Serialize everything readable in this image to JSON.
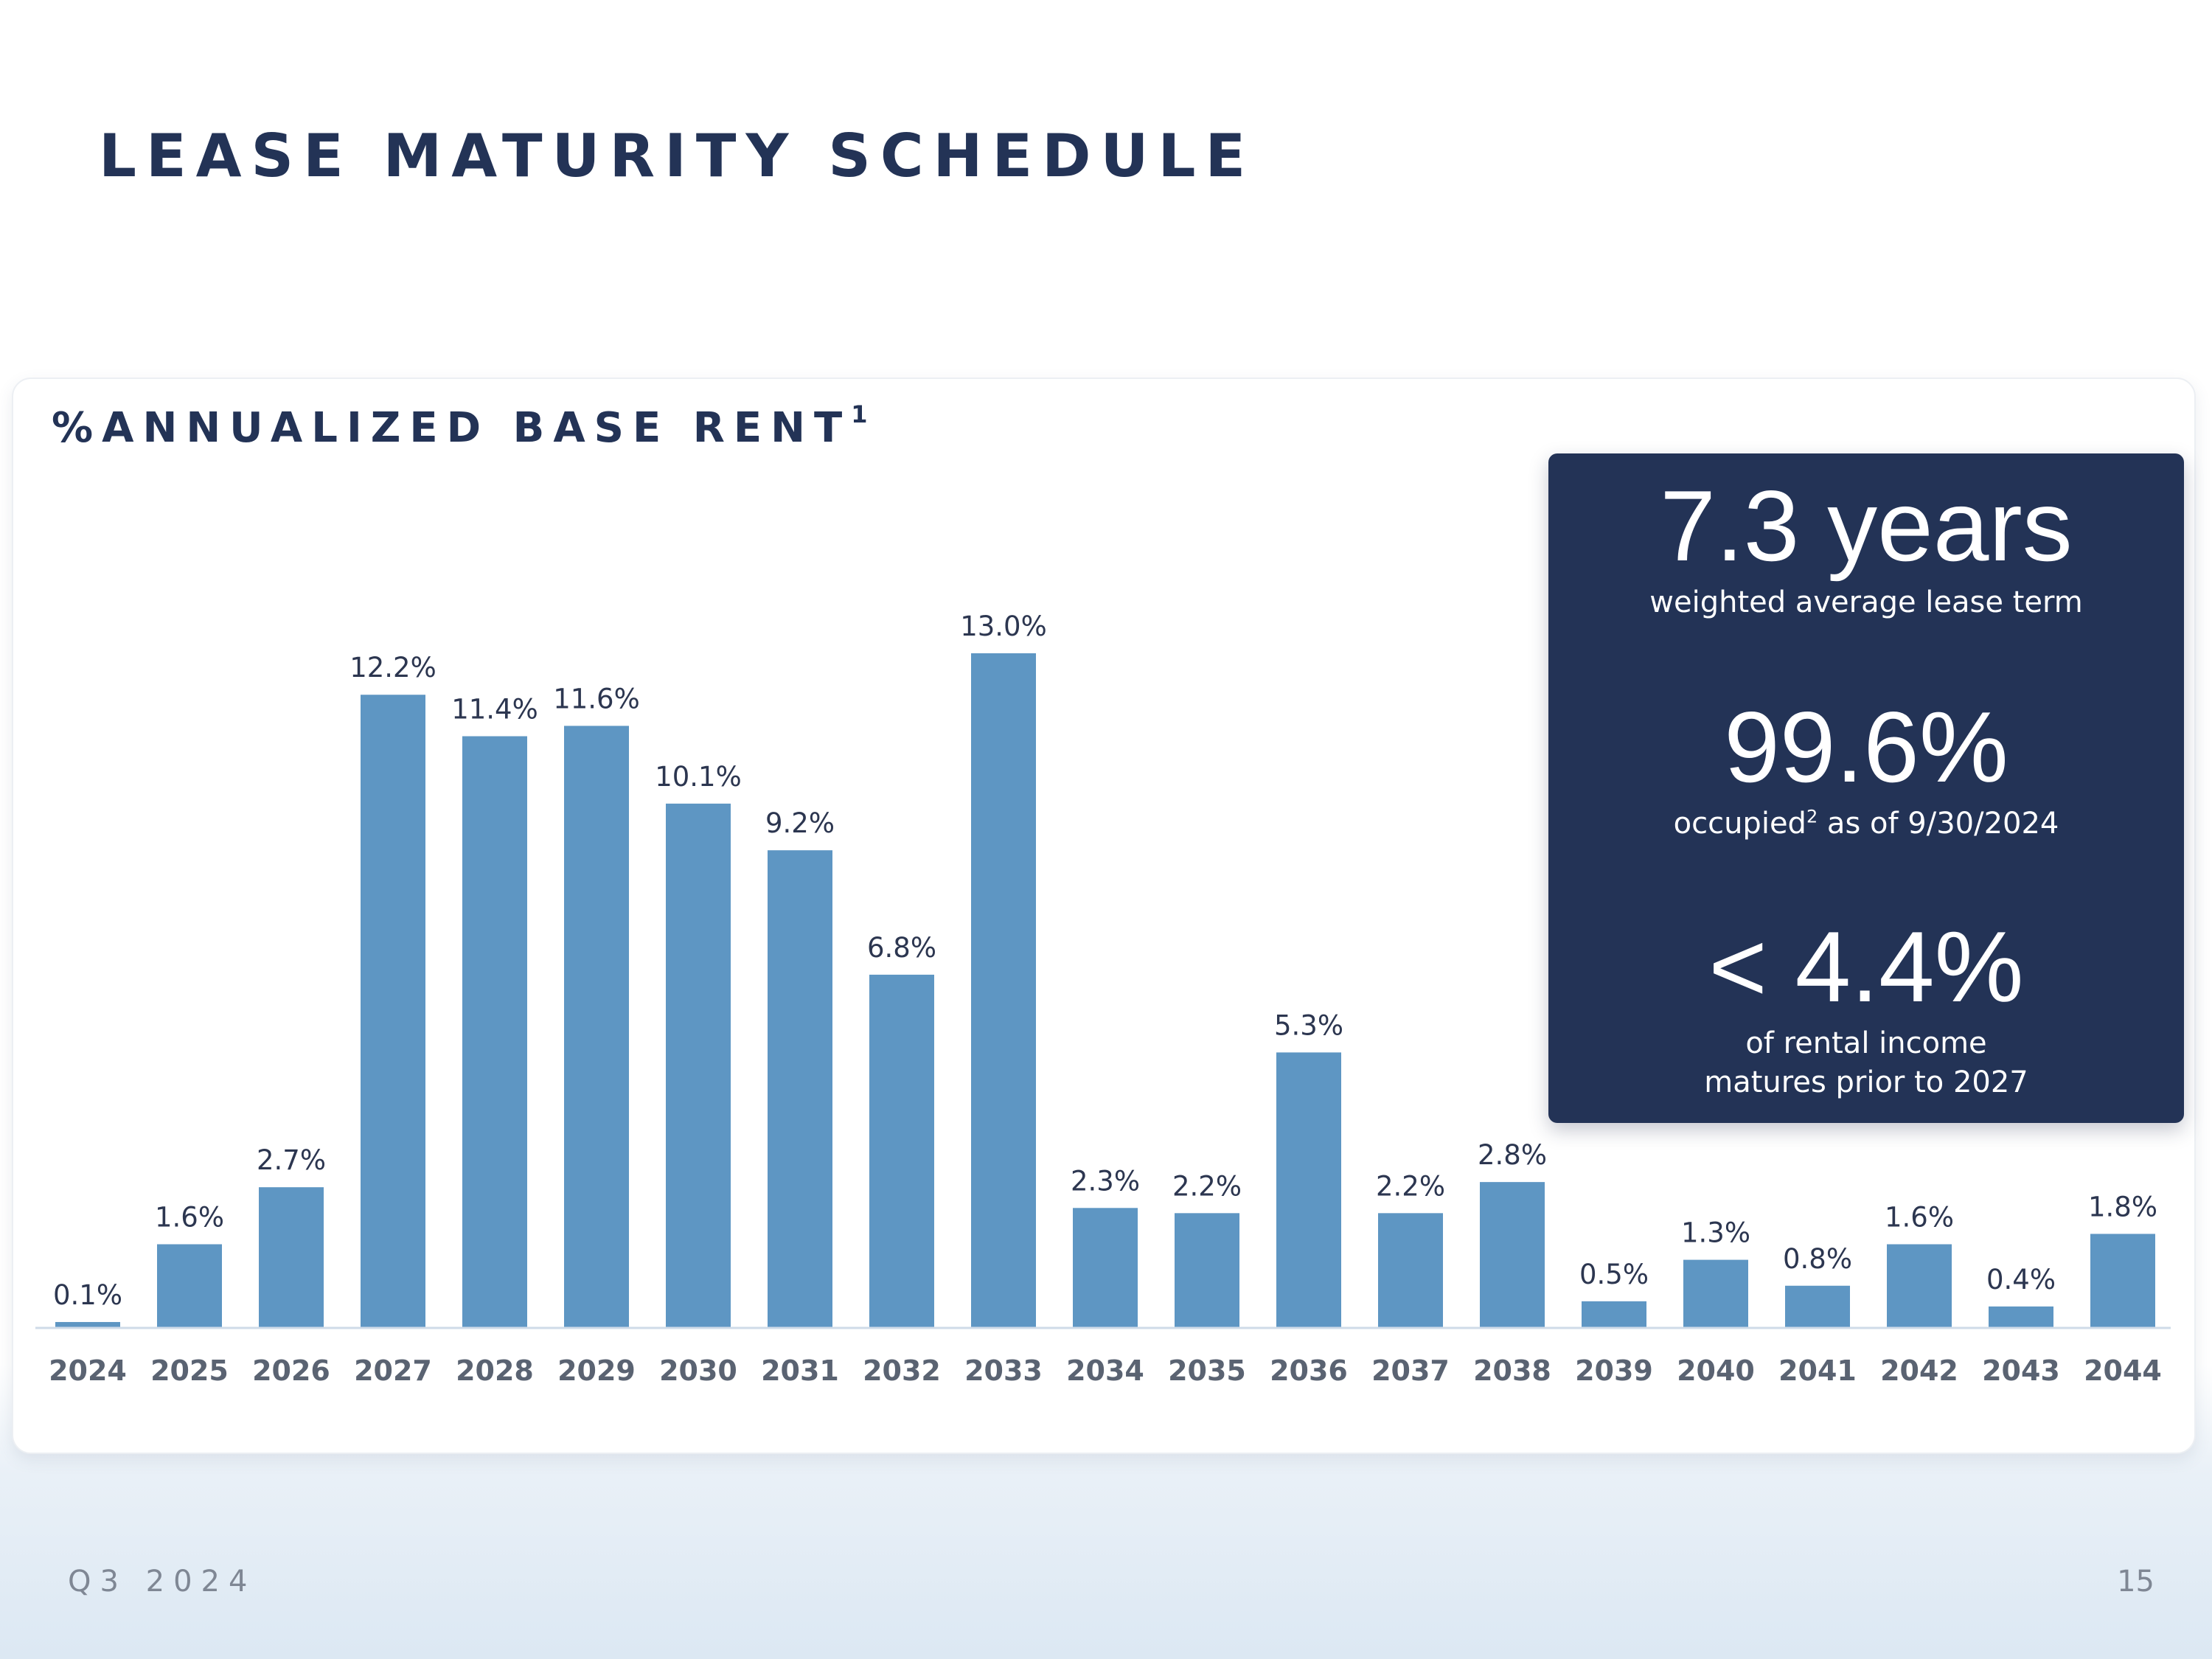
{
  "page": {
    "title": "LEASE MATURITY SCHEDULE",
    "footer_left": "Q3 2024",
    "page_number": "15"
  },
  "card": {
    "title": "%ANNUALIZED BASE RENT",
    "title_footnote": "1"
  },
  "stats": {
    "wale_value": "7.3 years",
    "wale_label": "weighted average lease term",
    "occupancy_value": "99.6%",
    "occupancy_label_prefix": "occupied",
    "occupancy_footnote": "2",
    "occupancy_label_suffix": " as of 9/30/2024",
    "maturing_value": "< 4.4%",
    "maturing_label_line1": "of rental income",
    "maturing_label_line2": "matures prior to 2027"
  },
  "colors": {
    "bar": "#5e96c3",
    "navy": "#233356",
    "label": "#2c3650",
    "tick": "#5a6372",
    "axis": "#cfdbe8"
  },
  "chart_data": {
    "type": "bar",
    "title": "%ANNUALIZED BASE RENT",
    "xlabel": "",
    "ylabel": "",
    "ylim": [
      0,
      13.0
    ],
    "grid": false,
    "categories": [
      "2024",
      "2025",
      "2026",
      "2027",
      "2028",
      "2029",
      "2030",
      "2031",
      "2032",
      "2033",
      "2034",
      "2035",
      "2036",
      "2037",
      "2038",
      "2039",
      "2040",
      "2041",
      "2042",
      "2043",
      "2044"
    ],
    "values": [
      0.1,
      1.6,
      2.7,
      12.2,
      11.4,
      11.6,
      10.1,
      9.2,
      6.8,
      13.0,
      2.3,
      2.2,
      5.3,
      2.2,
      2.8,
      0.5,
      1.3,
      0.8,
      1.6,
      0.4,
      1.8
    ],
    "data_labels": [
      "0.1%",
      "1.6%",
      "2.7%",
      "12.2%",
      "11.4%",
      "11.6%",
      "10.1%",
      "9.2%",
      "6.8%",
      "13.0%",
      "2.3%",
      "2.2%",
      "5.3%",
      "2.2%",
      "2.8%",
      "0.5%",
      "1.3%",
      "0.8%",
      "1.6%",
      "0.4%",
      "1.8%"
    ]
  }
}
